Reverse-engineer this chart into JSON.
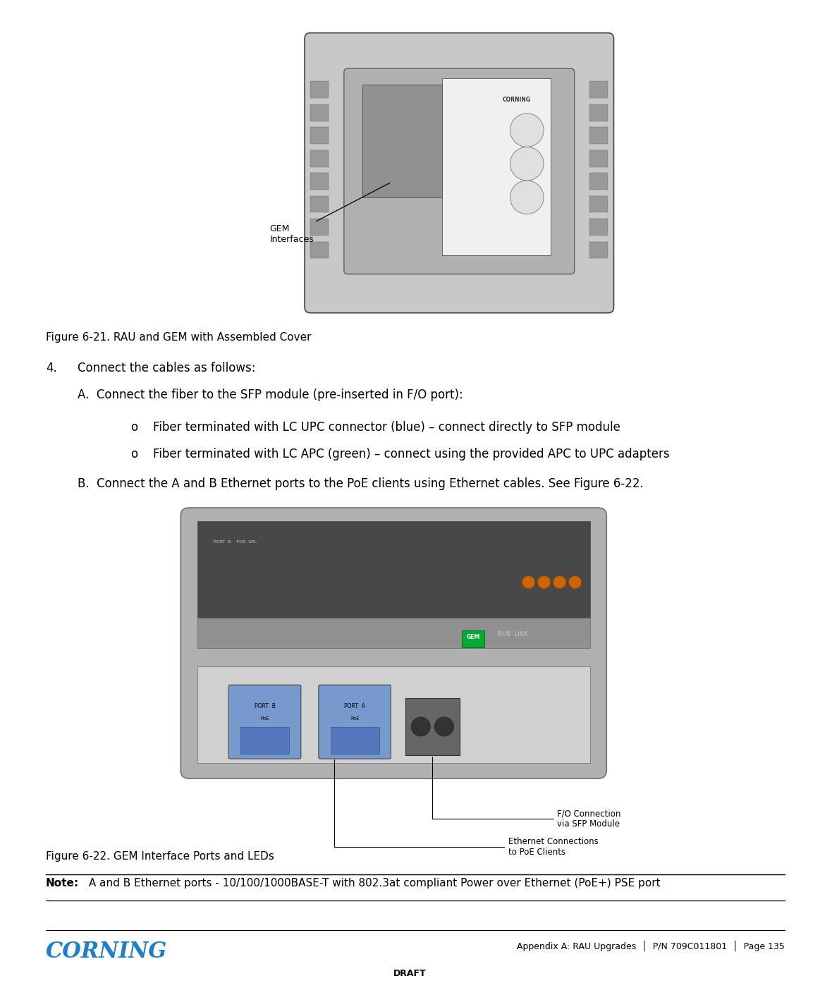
{
  "page_width": 11.63,
  "page_height": 13.94,
  "dpi": 100,
  "background_color": "#ffffff",
  "text_color": "#000000",
  "fig1_caption": "Figure 6-21. RAU and GEM with Assembled Cover",
  "fig2_caption": "Figure 6-22. GEM Interface Ports and LEDs",
  "note_bold": "Note:",
  "note_text": " A and B Ethernet ports - 10/100/1000BASE-T with 802.3at compliant Power over Ethernet (PoE+) PSE port",
  "step4_text": "4.    Connect the cables as follows:",
  "stepA_text": "A.  Connect the fiber to the SFP module (pre-inserted in F/O port):",
  "bullet1": "Fiber terminated with LC UPC connector (blue) – connect directly to SFP module",
  "bullet2": "Fiber terminated with LC APC (green) – connect using the provided APC to UPC adapters",
  "stepB_text": "B.  Connect the A and B Ethernet ports to the PoE clients using Ethernet cables. See Figure 6-22.",
  "footer_left": "CORNING",
  "footer_center": "DRAFT",
  "footer_right": "Appendix A: RAU Upgrades  |  P/N 709C011801  |  Page 135",
  "corning_color": "#1e7ec8",
  "font_size_body": 12,
  "font_size_caption": 11,
  "font_size_note": 11,
  "font_size_footer": 9,
  "font_size_step": 12
}
